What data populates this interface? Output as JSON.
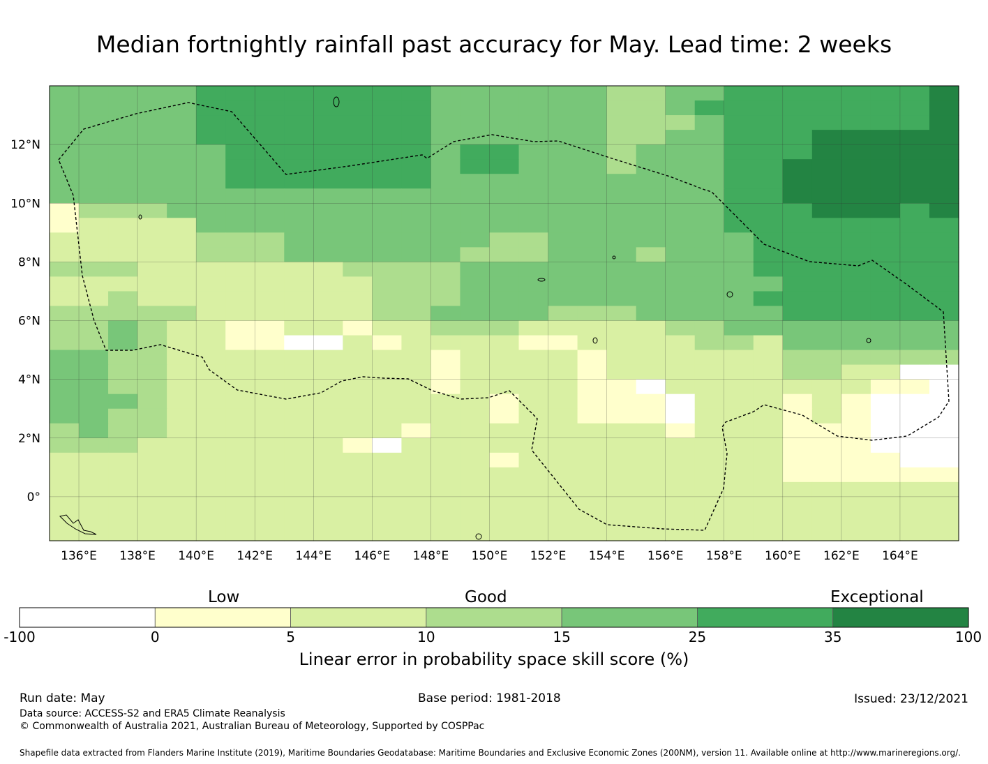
{
  "title": "Median fortnightly rainfall past accuracy for May. Lead time: 2 weeks",
  "map": {
    "lon_ticks": [
      "136°E",
      "138°E",
      "140°E",
      "142°E",
      "144°E",
      "146°E",
      "148°E",
      "150°E",
      "152°E",
      "154°E",
      "156°E",
      "158°E",
      "160°E",
      "162°E",
      "164°E"
    ],
    "lat_ticks": [
      "12°N",
      "10°N",
      "8°N",
      "6°N",
      "4°N",
      "2°N",
      "0°"
    ],
    "lon_tick_values": [
      136,
      138,
      140,
      142,
      144,
      146,
      148,
      150,
      152,
      154,
      156,
      158,
      160,
      162,
      164
    ],
    "lat_tick_values": [
      12,
      10,
      8,
      6,
      4,
      2,
      0
    ],
    "lon_range": [
      135,
      166
    ],
    "lat_range": [
      -1.5,
      14
    ],
    "grid": true,
    "boundary_style": "dashed"
  },
  "colorbar": {
    "categories": [
      {
        "label": "Low",
        "position": "left"
      },
      {
        "label": "Good",
        "position": "center"
      },
      {
        "label": "Exceptional",
        "position": "right"
      }
    ],
    "bins": [
      {
        "from": "-100",
        "to": "0",
        "color": "#ffffff"
      },
      {
        "from": "0",
        "to": "5",
        "color": "#ffffcc"
      },
      {
        "from": "5",
        "to": "10",
        "color": "#d9f0a3"
      },
      {
        "from": "10",
        "to": "15",
        "color": "#addd8e"
      },
      {
        "from": "15",
        "to": "25",
        "color": "#78c679"
      },
      {
        "from": "25",
        "to": "35",
        "color": "#41ab5d"
      },
      {
        "from": "35",
        "to": "100",
        "color": "#238443"
      }
    ],
    "tick_labels": [
      "-100",
      "0",
      "5",
      "10",
      "15",
      "25",
      "35",
      "100"
    ],
    "title": "Linear error in probability space skill score (%)"
  },
  "footer": {
    "run_date": "Run date: May",
    "base_period": "Base period: 1981-2018",
    "issued": "Issued: 23/12/2021",
    "data_source": "Data source: ACCESS-S2 and ERA5 Climate Reanalysis",
    "copyright": "© Commonwealth of Australia 2021, Australian Bureau of Meteorology, Supported by COSPPac",
    "shapefile": "Shapefile data extracted from Flanders Marine Institute (2019), Maritime Boundaries Geodatabase: Maritime Boundaries and Exclusive Economic Zones (200NM), version 11. Available online at http://www.marineregions.org/."
  },
  "skill_grid": {
    "rows_north_to_south": [
      "4444455555555444444334455555556",
      "4444455555555444444334555555556",
      "4444455555555444444333455555556",
      "4444455555555444444334455566666",
      "4444445555555455444344455566666",
      "4444445555555455444344455666666",
      "4444445555555444444444455666666",
      "4444444444444444444444455666666",
      "1333444444444444444444455566656",
      "1222244444444444444444455555555",
      "2222233344444443344444445555555",
      "2222233344444433344434445555555",
      "3332222222333344444444445555555",
      "2222222222233344444444444555555",
      "2232222222233344444444445555555",
      "3333322222233444433344444555555",
      "3343221122122333222223344444444",
      "3343221100212222112222332444444",
      "4433222222222122221222222333333",
      "4433222222222122221222222332200",
      "4433222222222122221102222222110",
      "4443222222222221221110222121000",
      "4433222222222221221110222121000",
      "3433222222221222222221222111000",
      "3332222222102222222222222111000",
      "2222222222222221222222222111100",
      "2222222222222222222222222111111",
      "2222222222222222222222222222222",
      "2222222222222222222222222222222",
      "2222222222222222222222222222222",
      "2222222222222222222222222222222"
    ]
  }
}
